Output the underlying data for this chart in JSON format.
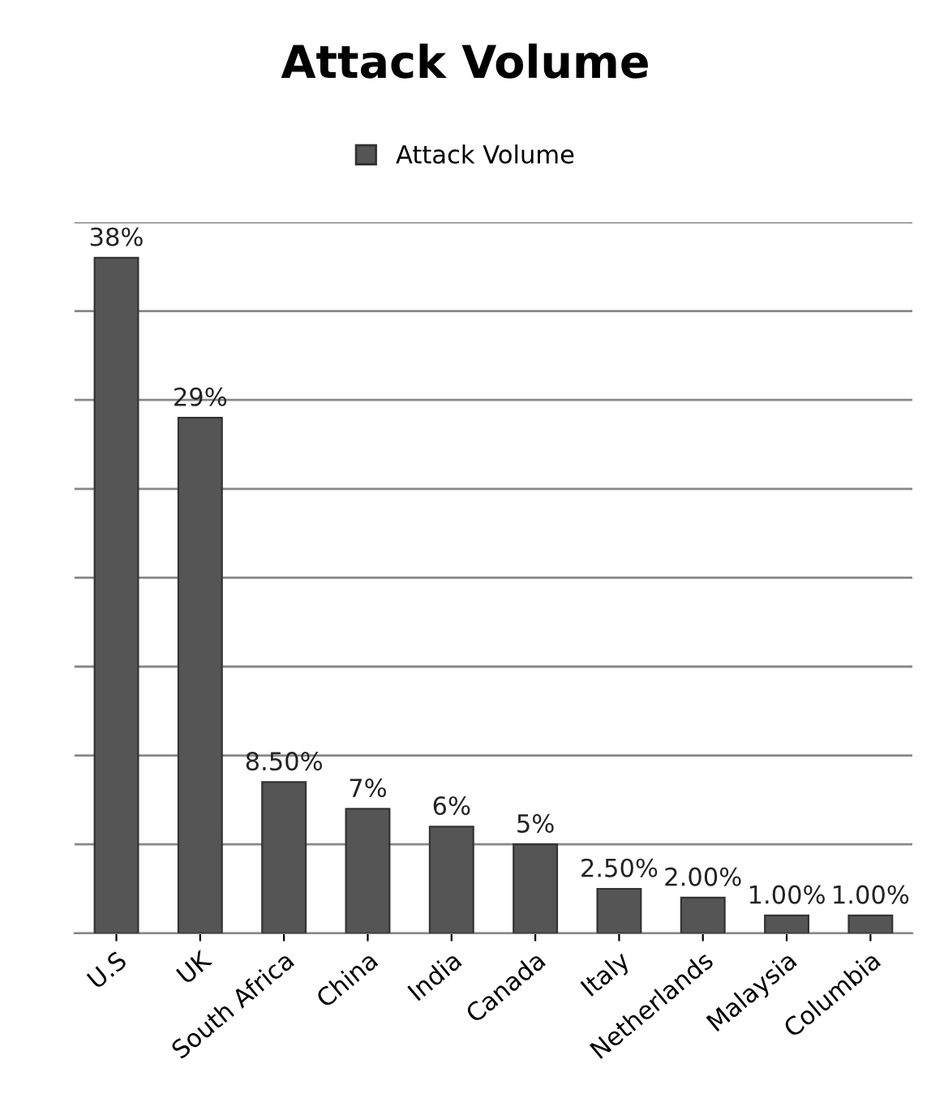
{
  "chart_data": {
    "type": "bar",
    "title": "Attack Volume",
    "categories": [
      "U.S",
      "UK",
      "South Africa",
      "China",
      "India",
      "Canada",
      "Italy",
      "Netherlands",
      "Malaysia",
      "Columbia"
    ],
    "series": [
      {
        "name": "Attack Volume",
        "color": "#555555",
        "values": [
          38,
          29,
          8.5,
          7,
          6,
          5,
          2.5,
          2,
          1,
          1
        ],
        "value_labels": [
          "38%",
          "29%",
          "8.50%",
          "7%",
          "6%",
          "5%",
          "2.50%",
          "2.00%",
          "1.00%",
          "1.00%"
        ]
      }
    ],
    "ylim": [
      0,
      40
    ],
    "yticks": [
      {
        "value": 0,
        "label": null
      },
      {
        "value": 5,
        "label": null
      },
      {
        "value": 10,
        "label": null
      },
      {
        "value": 15,
        "label": null
      },
      {
        "value": 20,
        "label": null
      },
      {
        "value": 25,
        "label": null
      },
      {
        "value": 30,
        "label": null
      },
      {
        "value": 35,
        "label": null
      },
      {
        "value": 40,
        "label": null
      }
    ],
    "tick_labels": "x",
    "grid": "y",
    "legend": "top"
  }
}
